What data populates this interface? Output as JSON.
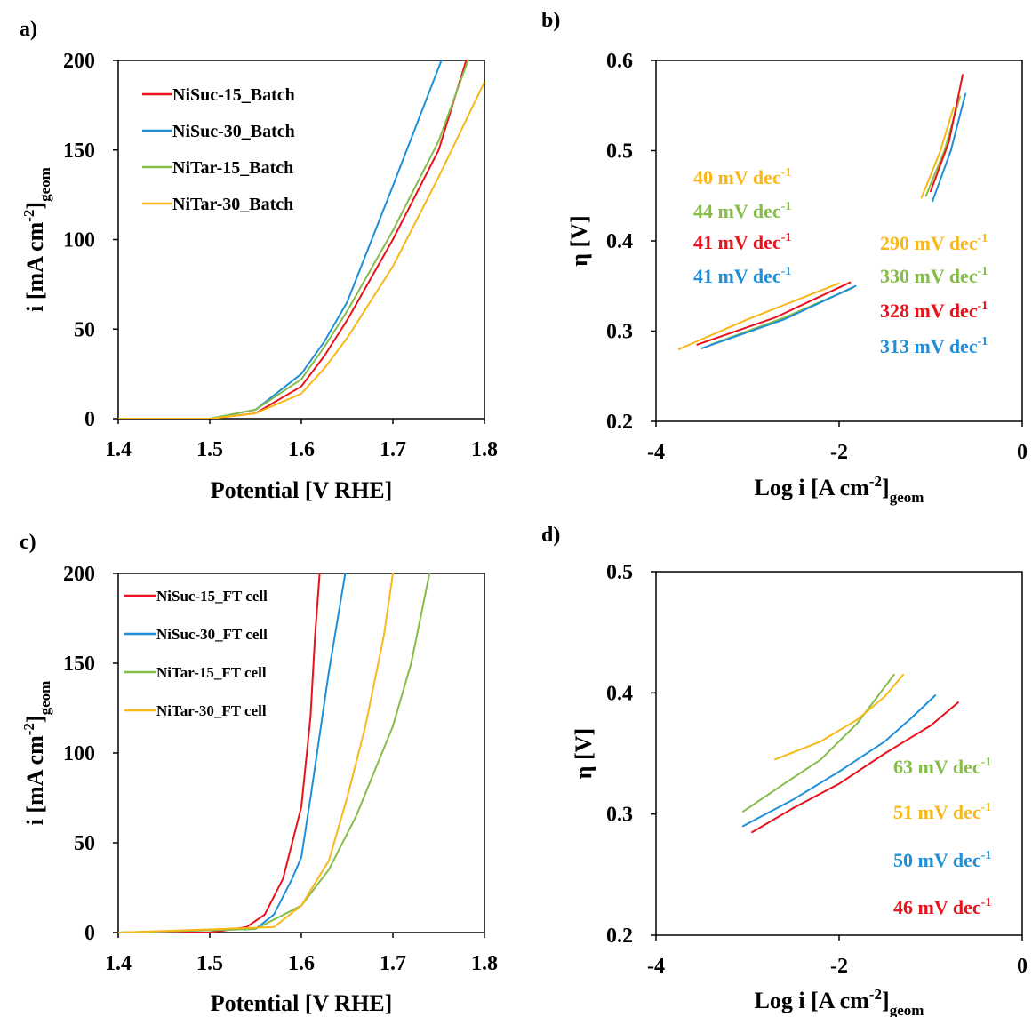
{
  "colors": {
    "red": "#e8121c",
    "blue": "#1f8fd9",
    "green": "#86bd4a",
    "yellow": "#f9b81a"
  },
  "chart_data": [
    {
      "panel": "a)",
      "type": "line",
      "xlabel": "Potential [V RHE]",
      "ylabel": "i [mA cm",
      "ylabel_sup": "-2",
      "ylabel_tail": "]",
      "ylabel_sub": "geom",
      "xlim": [
        1.4,
        1.8
      ],
      "ylim": [
        0,
        200
      ],
      "xticks": [
        "1.4",
        "1.5",
        "1.6",
        "1.7",
        "1.8"
      ],
      "yticks": [
        "0",
        "50",
        "100",
        "150",
        "200"
      ],
      "legend_position": "top-left",
      "series": [
        {
          "name": "NiSuc-15_Batch",
          "color": "red",
          "x": [
            1.4,
            1.5,
            1.55,
            1.6,
            1.625,
            1.65,
            1.7,
            1.75,
            1.78
          ],
          "y": [
            0,
            0,
            3,
            18,
            35,
            55,
            100,
            150,
            200
          ]
        },
        {
          "name": "NiSuc-30_Batch",
          "color": "blue",
          "x": [
            1.4,
            1.5,
            1.55,
            1.6,
            1.625,
            1.65,
            1.7,
            1.753
          ],
          "y": [
            0,
            0,
            5,
            25,
            43,
            65,
            130,
            200
          ]
        },
        {
          "name": "NiTar-15_Batch",
          "color": "green",
          "x": [
            1.4,
            1.5,
            1.55,
            1.6,
            1.625,
            1.65,
            1.7,
            1.75,
            1.782
          ],
          "y": [
            0,
            0,
            5,
            22,
            40,
            60,
            105,
            155,
            200
          ]
        },
        {
          "name": "NiTar-30_Batch",
          "color": "yellow",
          "x": [
            1.4,
            1.5,
            1.55,
            1.6,
            1.625,
            1.65,
            1.7,
            1.75,
            1.8
          ],
          "y": [
            0,
            0,
            3,
            14,
            28,
            45,
            85,
            135,
            188
          ]
        }
      ]
    },
    {
      "panel": "b)",
      "type": "line",
      "xlabel": "Log i [A cm",
      "xlabel_sup": "-2",
      "xlabel_tail": "]",
      "xlabel_sub": "geom",
      "ylabel": "η [V]",
      "xlim": [
        -4,
        0
      ],
      "ylim": [
        0.2,
        0.6
      ],
      "xticks": [
        "-4",
        "-2",
        "0"
      ],
      "yticks": [
        "0.2",
        "0.3",
        "0.4",
        "0.5",
        "0.6"
      ],
      "series": [
        {
          "color": "yellow",
          "x": [
            -3.75,
            -3.0,
            -2.0
          ],
          "y": [
            0.28,
            0.313,
            0.353
          ]
        },
        {
          "color": "green",
          "x": [
            -3.4,
            -2.6,
            -1.85
          ],
          "y": [
            0.285,
            0.315,
            0.348
          ]
        },
        {
          "color": "red",
          "x": [
            -3.55,
            -2.7,
            -1.88
          ],
          "y": [
            0.285,
            0.315,
            0.354
          ]
        },
        {
          "color": "blue",
          "x": [
            -3.5,
            -2.6,
            -1.82
          ],
          "y": [
            0.281,
            0.313,
            0.35
          ]
        },
        {
          "color": "yellow",
          "x": [
            -1.1,
            -0.9,
            -0.75
          ],
          "y": [
            0.448,
            0.498,
            0.548
          ]
        },
        {
          "color": "green",
          "x": [
            -1.05,
            -0.85,
            -0.68
          ],
          "y": [
            0.45,
            0.5,
            0.56
          ]
        },
        {
          "color": "red",
          "x": [
            -1.0,
            -0.8,
            -0.65
          ],
          "y": [
            0.455,
            0.51,
            0.584
          ]
        },
        {
          "color": "blue",
          "x": [
            -0.98,
            -0.78,
            -0.62
          ],
          "y": [
            0.444,
            0.5,
            0.563
          ]
        }
      ],
      "annotations": [
        {
          "value": "40",
          "unit": " mV dec",
          "sup": "-1",
          "color": "yellow"
        },
        {
          "value": "44",
          "unit": " mV dec",
          "sup": "-1",
          "color": "green"
        },
        {
          "value": "41",
          "unit": " mV dec",
          "sup": "-1",
          "color": "red"
        },
        {
          "value": "41",
          "unit": " mV dec",
          "sup": "-1",
          "color": "blue"
        },
        {
          "value": "290",
          "unit": " mV dec",
          "sup": "-1",
          "color": "yellow"
        },
        {
          "value": "330",
          "unit": " mV dec",
          "sup": "-1",
          "color": "green"
        },
        {
          "value": "328",
          "unit": " mV dec",
          "sup": "-1",
          "color": "red"
        },
        {
          "value": "313",
          "unit": " mV dec",
          "sup": "-1",
          "color": "blue"
        }
      ]
    },
    {
      "panel": "c)",
      "type": "line",
      "xlabel": "Potential [V RHE]",
      "ylabel": "i [mA cm",
      "ylabel_sup": "-2",
      "ylabel_tail": "]",
      "ylabel_sub": "geom",
      "xlim": [
        1.4,
        1.8
      ],
      "ylim": [
        0,
        200
      ],
      "xticks": [
        "1.4",
        "1.5",
        "1.6",
        "1.7",
        "1.8"
      ],
      "yticks": [
        "0",
        "50",
        "100",
        "150",
        "200"
      ],
      "legend_position": "top-left",
      "series": [
        {
          "name": "NiSuc-15_FT cell",
          "color": "red",
          "x": [
            1.4,
            1.5,
            1.54,
            1.56,
            1.58,
            1.6,
            1.61,
            1.615,
            1.62
          ],
          "y": [
            0,
            0,
            3,
            10,
            30,
            70,
            120,
            165,
            200
          ]
        },
        {
          "name": "NiSuc-30_FT cell",
          "color": "blue",
          "x": [
            1.4,
            1.55,
            1.57,
            1.59,
            1.6,
            1.61,
            1.63,
            1.648
          ],
          "y": [
            0,
            2,
            10,
            30,
            42,
            75,
            145,
            200
          ]
        },
        {
          "name": "NiTar-15_FT cell",
          "color": "green",
          "x": [
            1.4,
            1.55,
            1.6,
            1.63,
            1.66,
            1.7,
            1.72,
            1.74
          ],
          "y": [
            0,
            2,
            15,
            35,
            65,
            115,
            150,
            200
          ]
        },
        {
          "name": "NiTar-30_FT cell",
          "color": "yellow",
          "x": [
            1.4,
            1.57,
            1.6,
            1.63,
            1.65,
            1.67,
            1.69,
            1.7
          ],
          "y": [
            0,
            3,
            15,
            40,
            75,
            115,
            165,
            200
          ]
        }
      ]
    },
    {
      "panel": "d)",
      "type": "line",
      "xlabel": "Log i [A cm",
      "xlabel_sup": "-2",
      "xlabel_tail": "]",
      "xlabel_sub": "geom",
      "ylabel": "η [V]",
      "xlim": [
        -4,
        0
      ],
      "ylim": [
        0.2,
        0.5
      ],
      "xticks": [
        "-4",
        "-2",
        "0"
      ],
      "yticks": [
        "0.2",
        "0.3",
        "0.4",
        "0.5"
      ],
      "series": [
        {
          "color": "green",
          "x": [
            -3.05,
            -2.6,
            -2.2,
            -1.8,
            -1.4
          ],
          "y": [
            0.302,
            0.325,
            0.345,
            0.375,
            0.415
          ]
        },
        {
          "color": "yellow",
          "x": [
            -2.7,
            -2.2,
            -1.8,
            -1.5,
            -1.3
          ],
          "y": [
            0.345,
            0.36,
            0.378,
            0.397,
            0.415
          ]
        },
        {
          "color": "blue",
          "x": [
            -3.05,
            -2.5,
            -2.0,
            -1.5,
            -1.2,
            -0.95
          ],
          "y": [
            0.29,
            0.312,
            0.335,
            0.36,
            0.38,
            0.398
          ]
        },
        {
          "color": "red",
          "x": [
            -2.95,
            -2.5,
            -2.0,
            -1.5,
            -1.0,
            -0.7
          ],
          "y": [
            0.285,
            0.305,
            0.325,
            0.35,
            0.373,
            0.392
          ]
        }
      ],
      "annotations": [
        {
          "value": "63",
          "unit": " mV dec",
          "sup": "-1",
          "color": "green"
        },
        {
          "value": "51",
          "unit": " mV dec",
          "sup": "-1",
          "color": "yellow"
        },
        {
          "value": "50",
          "unit": " mV dec",
          "sup": "-1",
          "color": "blue"
        },
        {
          "value": "46",
          "unit": " mV dec",
          "sup": "-1",
          "color": "red"
        }
      ]
    }
  ]
}
